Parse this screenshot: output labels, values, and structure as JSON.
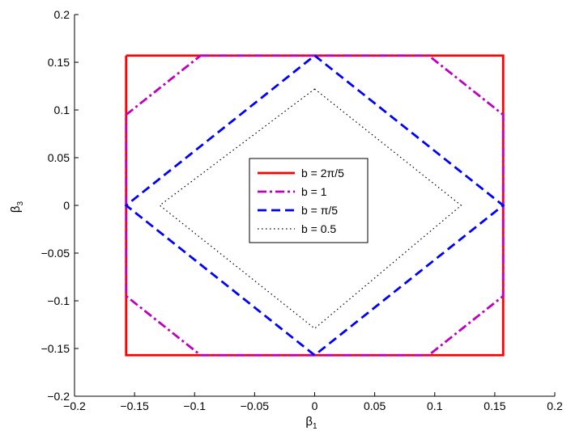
{
  "chart_data": {
    "type": "line",
    "title": "",
    "xlabel": {
      "main": "β",
      "sub": "1"
    },
    "ylabel": {
      "main": "β",
      "sub": "3"
    },
    "xlim": [
      -0.2,
      0.2
    ],
    "ylim": [
      -0.2,
      0.2
    ],
    "xticks": [
      -0.2,
      -0.15,
      -0.1,
      -0.05,
      0,
      0.05,
      0.1,
      0.15,
      0.2
    ],
    "yticks": [
      -0.2,
      -0.15,
      -0.1,
      -0.05,
      0,
      0.05,
      0.1,
      0.15,
      0.2
    ],
    "xtick_labels": [
      "−0.2",
      "−0.15",
      "−0.1",
      "−0.05",
      "0",
      "0.05",
      "0.1",
      "0.15",
      "0.2"
    ],
    "ytick_labels": [
      "−0.2",
      "−0.15",
      "−0.1",
      "−0.05",
      "0",
      "0.05",
      "0.1",
      "0.15",
      "0.2"
    ],
    "grid": false,
    "legend_position": "center",
    "series": [
      {
        "name": "b = 2π/5",
        "color": "#ff0000",
        "style": "solid",
        "x": [
          -0.157,
          0.157,
          0.157,
          -0.157,
          -0.157
        ],
        "y": [
          0.157,
          0.157,
          -0.157,
          -0.157,
          0.157
        ]
      },
      {
        "name": "b = 1",
        "color": "#bf00bf",
        "style": "dashdot",
        "x": [
          -0.095,
          0.095,
          0.157,
          0.157,
          0.095,
          -0.095,
          -0.157,
          -0.157,
          -0.095
        ],
        "y": [
          0.157,
          0.157,
          0.095,
          -0.095,
          -0.157,
          -0.157,
          -0.095,
          0.095,
          0.157
        ]
      },
      {
        "name": "b = π/5",
        "color": "#0000ff",
        "style": "dashed",
        "x": [
          0,
          0.157,
          0,
          -0.157,
          0
        ],
        "y": [
          0.157,
          0,
          -0.157,
          0,
          0.157
        ]
      },
      {
        "name": "b = 0.5",
        "color": "#000000",
        "style": "dotted",
        "x": [
          0,
          0.122,
          0,
          -0.129,
          0
        ],
        "y": [
          0.122,
          0,
          -0.129,
          0,
          0.122
        ]
      }
    ]
  }
}
